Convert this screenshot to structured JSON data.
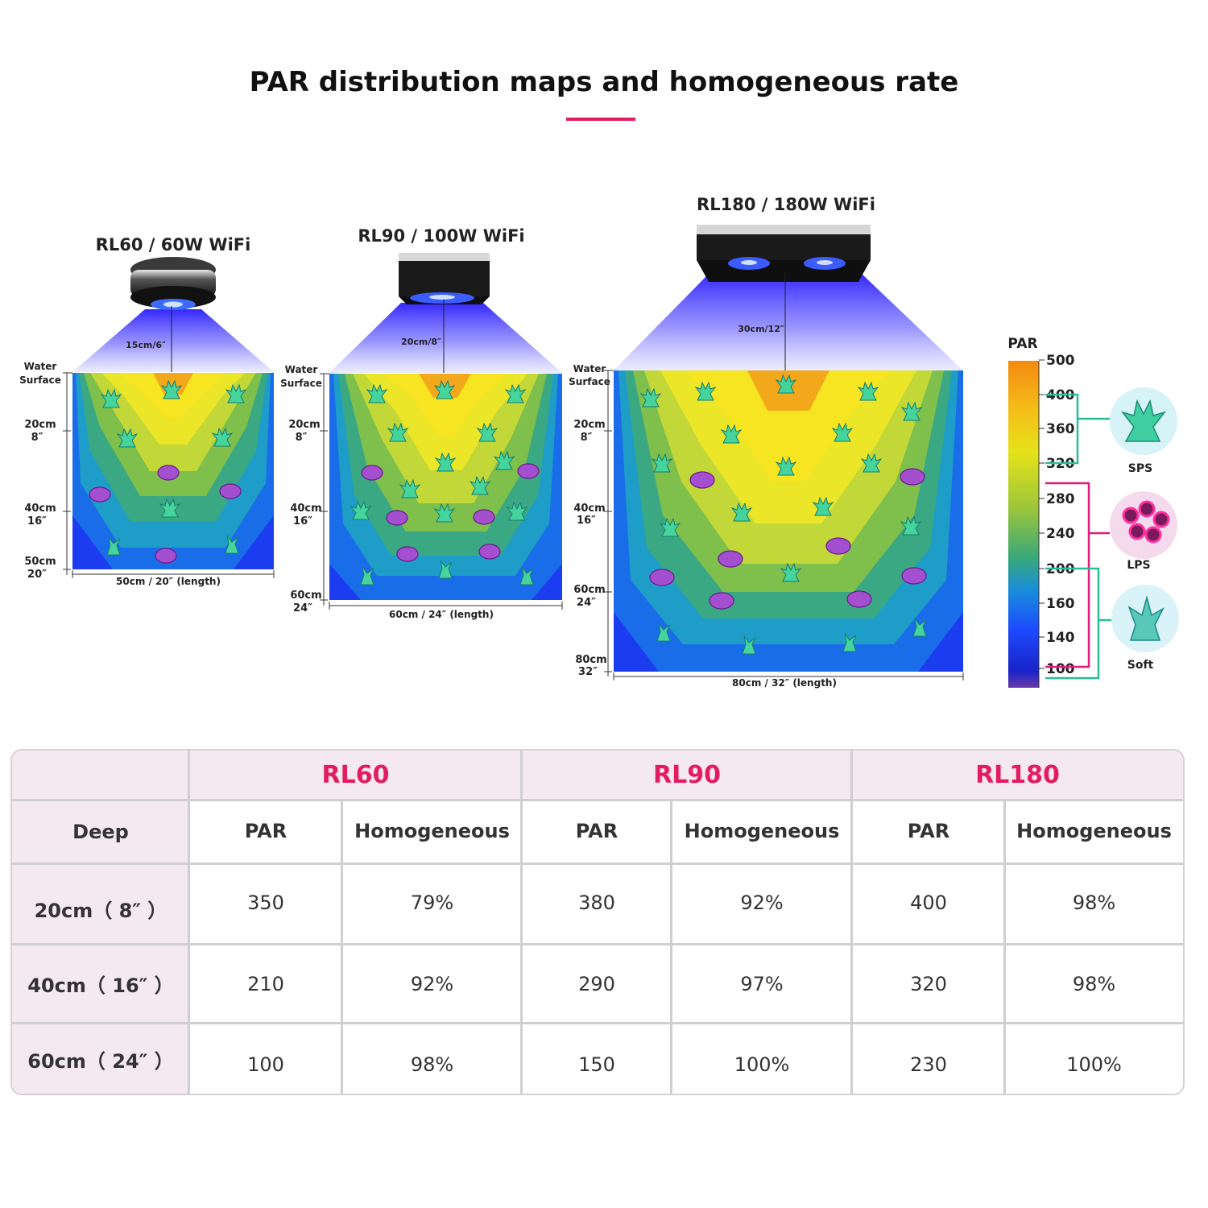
{
  "title": "PAR distribution maps and homogeneous rate",
  "colors": {
    "accent": "#e31b5f",
    "table_header_bg": "#f4e9ef",
    "beam": "#3b2cff",
    "bracket_sps": "#2bbd99",
    "bracket_lps": "#e4187c",
    "bracket_soft": "#2bbd99"
  },
  "maps": [
    {
      "name": "RL60 / 60W WiFi",
      "beam_label": "15cm/6″",
      "water": "Water",
      "surface": "Surface",
      "depths": [
        {
          "cm": "20cm",
          "in": "8″"
        },
        {
          "cm": "40cm",
          "in": "16″"
        },
        {
          "cm": "50cm",
          "in": "20″"
        }
      ],
      "length_label": "50cm / 20″  (length)"
    },
    {
      "name": "RL90 / 100W WiFi",
      "beam_label": "20cm/8″",
      "water": "Water",
      "surface": "Surface",
      "depths": [
        {
          "cm": "20cm",
          "in": "8″"
        },
        {
          "cm": "40cm",
          "in": "16″"
        },
        {
          "cm": "60cm",
          "in": "24″"
        }
      ],
      "length_label": "60cm / 24″  (length)"
    },
    {
      "name": "RL180 / 180W WiFi",
      "beam_label": "30cm/12″",
      "water": "Water",
      "surface": "Surface",
      "depths": [
        {
          "cm": "20cm",
          "in": "8″"
        },
        {
          "cm": "40cm",
          "in": "16″"
        },
        {
          "cm": "60cm",
          "in": "24″"
        },
        {
          "cm": "80cm",
          "in": "32″"
        }
      ],
      "length_label": "80cm / 32″  (length)"
    }
  ],
  "legend": {
    "title": "PAR",
    "ticks": [
      "500",
      "400",
      "360",
      "320",
      "280",
      "240",
      "200",
      "160",
      "140",
      "100"
    ],
    "coral_types": [
      "SPS",
      "LPS",
      "Soft"
    ]
  },
  "table": {
    "models": [
      "RL60",
      "RL90",
      "RL180"
    ],
    "depth_header": "Deep",
    "col_par": "PAR",
    "col_homog": "Homogeneous",
    "rows": [
      {
        "depth": "20cm（ 8″ ）",
        "values": [
          "350",
          "79%",
          "380",
          "92%",
          "400",
          "98%"
        ]
      },
      {
        "depth": "40cm（ 16″ ）",
        "values": [
          "210",
          "92%",
          "290",
          "97%",
          "320",
          "98%"
        ]
      },
      {
        "depth": "60cm（ 24″ ）",
        "values": [
          "100",
          "98%",
          "150",
          "100%",
          "230",
          "100%"
        ]
      }
    ]
  }
}
